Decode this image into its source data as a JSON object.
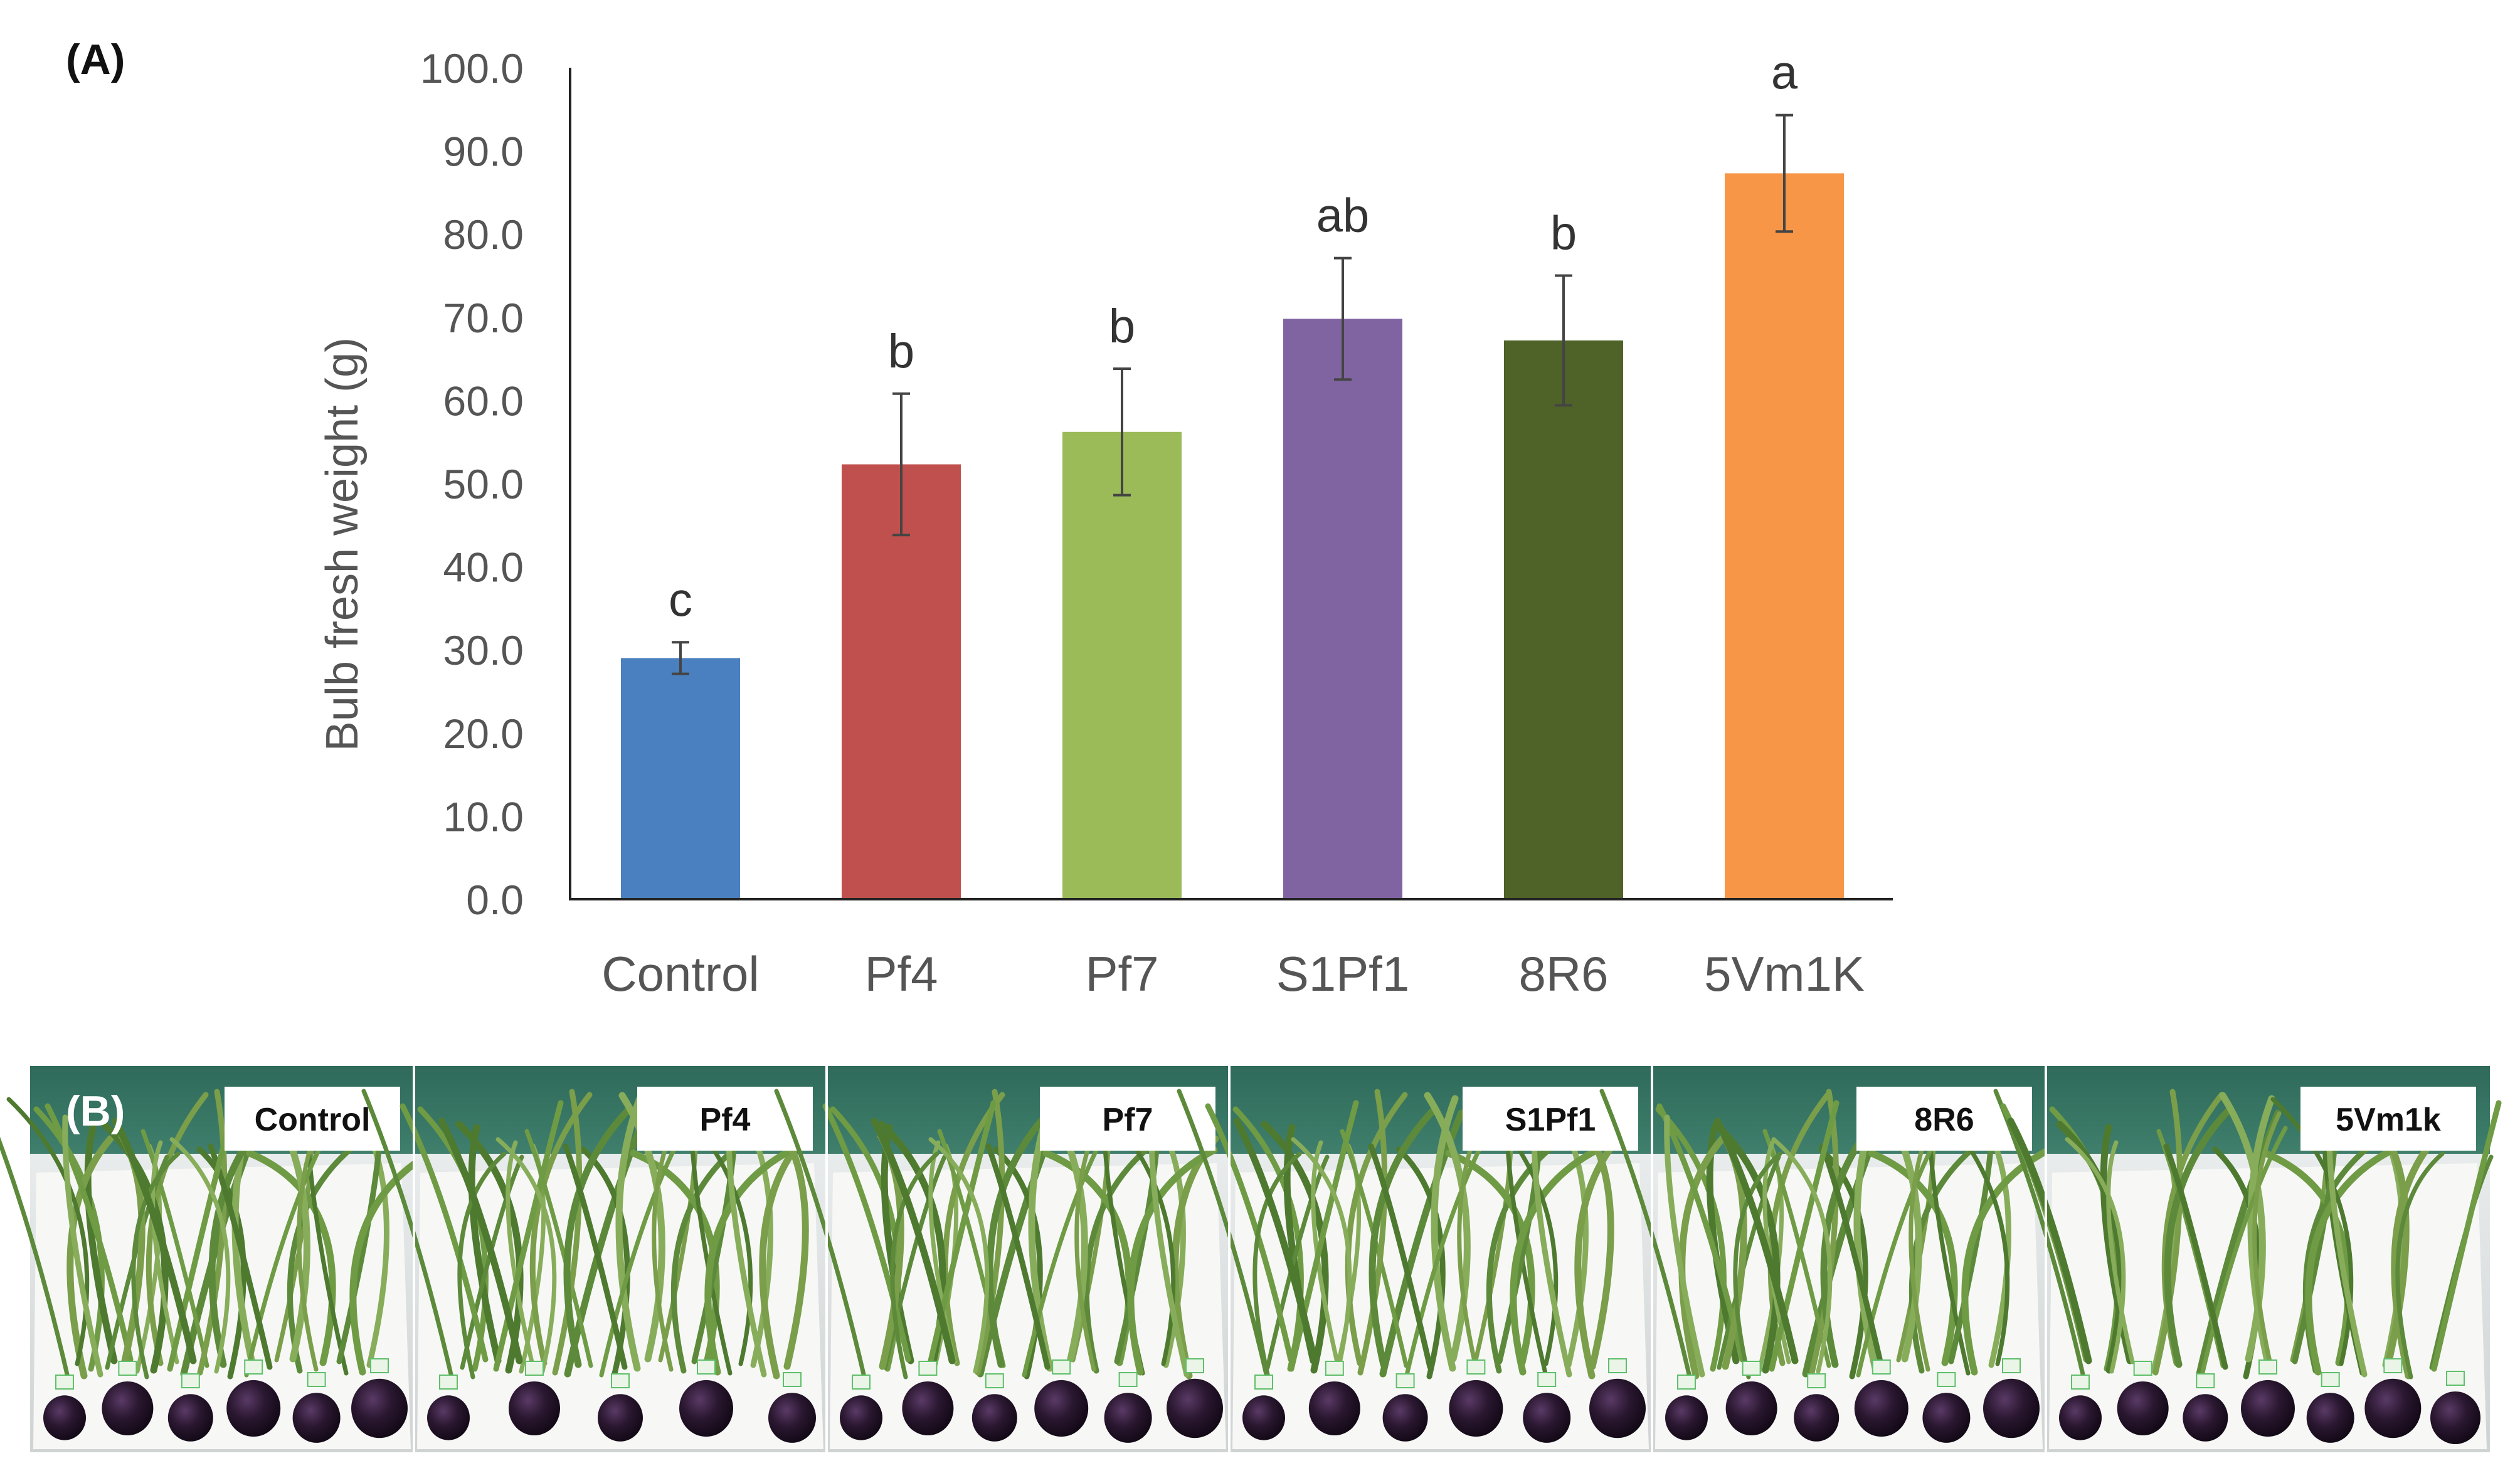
{
  "panel_a": {
    "letter": "(A)"
  },
  "panel_b": {
    "letter": "(B)",
    "photo_labels": [
      "Control",
      "Pf4",
      "Pf7",
      "S1Pf1",
      "8R6",
      "5Vm1k"
    ]
  },
  "chart_data": {
    "type": "bar",
    "title": "",
    "xlabel": "",
    "ylabel": "Bulb fresh weight (g)",
    "ylim": [
      0,
      100
    ],
    "yticks": [
      "0.0",
      "10.0",
      "20.0",
      "30.0",
      "40.0",
      "50.0",
      "60.0",
      "70.0",
      "80.0",
      "90.0",
      "100.0"
    ],
    "categories": [
      "Control",
      "Pf4",
      "Pf7",
      "S1Pf1",
      "8R6",
      "5Vm1K"
    ],
    "values": [
      29.0,
      52.3,
      56.2,
      69.8,
      67.2,
      87.3
    ],
    "errors": [
      1.9,
      8.5,
      7.6,
      7.3,
      7.8,
      7.0
    ],
    "significance_letters": [
      "c",
      "b",
      "b",
      "ab",
      "b",
      "a"
    ],
    "colors": [
      "#4b80c0",
      "#c0504d",
      "#9bbb59",
      "#8064a2",
      "#4f6228",
      "#f79646"
    ],
    "grid": false
  }
}
